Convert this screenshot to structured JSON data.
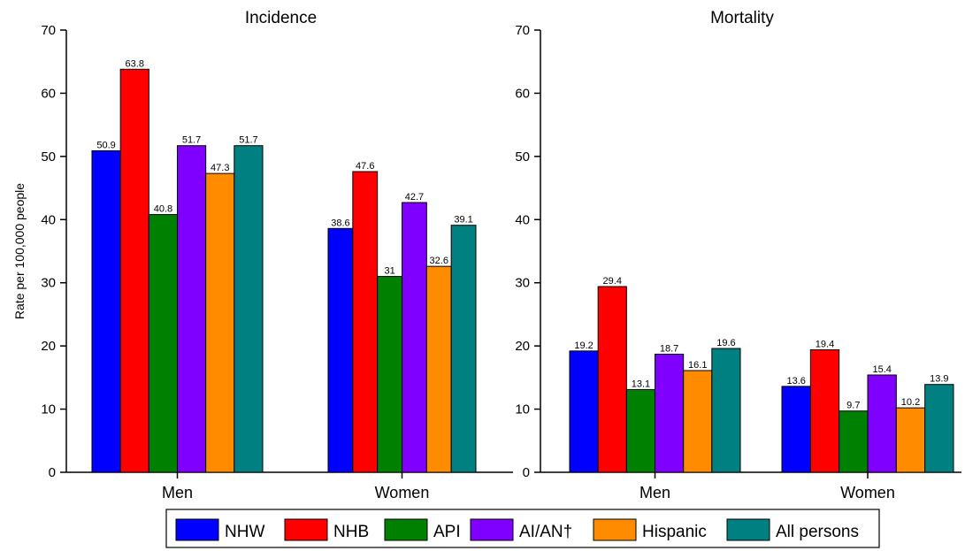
{
  "chart_data": {
    "type": "bar",
    "ylabel": "Rate per 100,000 people",
    "ylim": [
      0,
      70
    ],
    "yticks": [
      0,
      10,
      20,
      30,
      40,
      50,
      60,
      70
    ],
    "grid": false,
    "legend_position": "bottom",
    "series_names": [
      "NHW",
      "NHB",
      "API",
      "AI/AN†",
      "Hispanic",
      "All persons"
    ],
    "colors": [
      "#0000ff",
      "#ff0000",
      "#008000",
      "#8000ff",
      "#ff8c00",
      "#008080"
    ],
    "panels": [
      {
        "title": "Incidence",
        "categories": [
          "Men",
          "Women"
        ],
        "series": [
          {
            "name": "NHW",
            "values": [
              50.9,
              38.6
            ],
            "labels": [
              "50.9",
              "38.6"
            ]
          },
          {
            "name": "NHB",
            "values": [
              63.8,
              47.6
            ],
            "labels": [
              "63.8",
              "47.6"
            ]
          },
          {
            "name": "API",
            "values": [
              40.8,
              31
            ],
            "labels": [
              "40.8",
              "31"
            ]
          },
          {
            "name": "AI/AN†",
            "values": [
              51.7,
              42.7
            ],
            "labels": [
              "51.7",
              "42.7"
            ]
          },
          {
            "name": "Hispanic",
            "values": [
              47.3,
              32.6
            ],
            "labels": [
              "47.3",
              "32.6"
            ]
          },
          {
            "name": "All persons",
            "values": [
              51.7,
              39.1
            ],
            "labels": [
              "51.7",
              "39.1"
            ]
          }
        ]
      },
      {
        "title": "Mortality",
        "categories": [
          "Men",
          "Women"
        ],
        "series": [
          {
            "name": "NHW",
            "values": [
              19.2,
              13.6
            ],
            "labels": [
              "19.2",
              "13.6"
            ]
          },
          {
            "name": "NHB",
            "values": [
              29.4,
              19.4
            ],
            "labels": [
              "29.4",
              "19.4"
            ]
          },
          {
            "name": "API",
            "values": [
              13.1,
              9.7
            ],
            "labels": [
              "13.1",
              "9.7"
            ]
          },
          {
            "name": "AI/AN†",
            "values": [
              18.7,
              15.4
            ],
            "labels": [
              "18.7",
              "15.4"
            ]
          },
          {
            "name": "Hispanic",
            "values": [
              16.1,
              10.2
            ],
            "labels": [
              "16.1",
              "10.2"
            ]
          },
          {
            "name": "All persons",
            "values": [
              19.6,
              13.9
            ],
            "labels": [
              "19.6",
              "13.9"
            ]
          }
        ]
      }
    ]
  }
}
